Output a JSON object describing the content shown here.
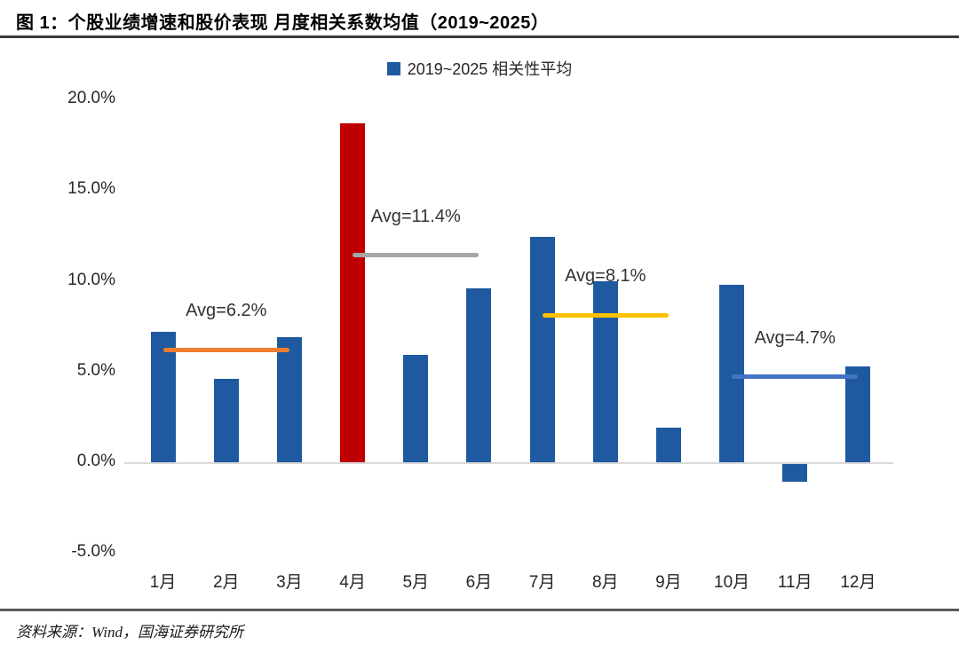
{
  "title": "图 1：个股业绩增速和股价表现  月度相关系数均值（2019~2025）",
  "source": "资料来源：Wind，国海证券研究所",
  "legend": {
    "label": "2019~2025 相关性平均",
    "marker_color": "#1f5aa0"
  },
  "chart_data": {
    "type": "bar",
    "title": "图 1：个股业绩增速和股价表现  月度相关系数均值（2019~2025）",
    "legend_entries": [
      "2019~2025 相关性平均"
    ],
    "legend_position": "top-center",
    "categories": [
      "1月",
      "2月",
      "3月",
      "4月",
      "5月",
      "6月",
      "7月",
      "8月",
      "9月",
      "10月",
      "11月",
      "12月"
    ],
    "values": [
      7.2,
      4.6,
      6.9,
      18.7,
      5.9,
      9.6,
      12.4,
      10.0,
      1.9,
      9.8,
      -1.0,
      5.3
    ],
    "unit": "%",
    "bar_color": "#1f5aa0",
    "highlight_index": 3,
    "highlight_color": "#c00000",
    "xlabel": "",
    "ylabel": "",
    "ylim": [
      -5,
      20
    ],
    "yticks": [
      "20.0%",
      "15.0%",
      "10.0%",
      "5.0%",
      "0.0%",
      "-5.0%"
    ],
    "ytick_values": [
      20,
      15,
      10,
      5,
      0,
      -5
    ],
    "grid": false,
    "avg_lines": [
      {
        "label": "Avg=6.2%",
        "value": 6.2,
        "months": [
          0,
          2
        ],
        "color": "#ed7d31"
      },
      {
        "label": "Avg=11.4%",
        "value": 11.4,
        "months": [
          3,
          5
        ],
        "color": "#a6a6a6"
      },
      {
        "label": "Avg=8.1%",
        "value": 8.1,
        "months": [
          6,
          8
        ],
        "color": "#ffc000"
      },
      {
        "label": "Avg=4.7%",
        "value": 4.7,
        "months": [
          9,
          11
        ],
        "color": "#4472c4"
      }
    ]
  }
}
